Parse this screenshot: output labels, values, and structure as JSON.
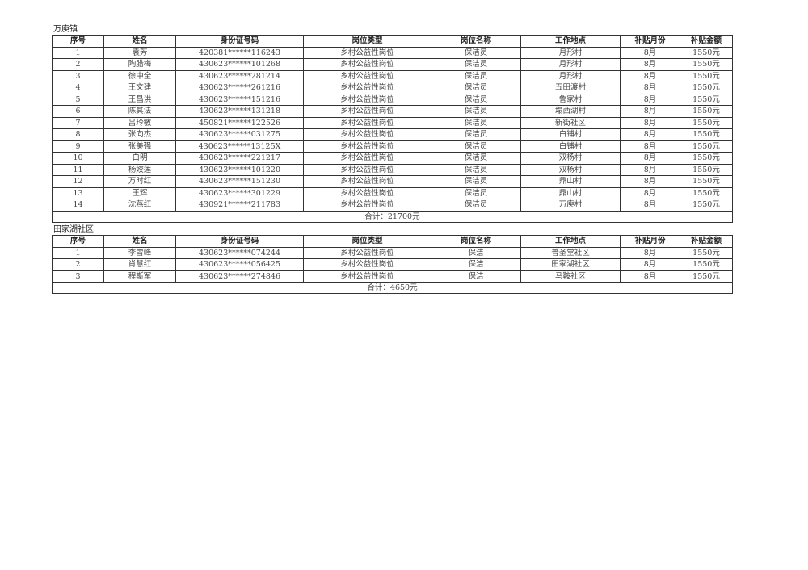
{
  "columns": [
    "序号",
    "姓名",
    "身份证号码",
    "岗位类型",
    "岗位名称",
    "工作地点",
    "补贴月份",
    "补贴金额"
  ],
  "sections": [
    {
      "title": "万庾镇",
      "rows": [
        [
          "1",
          "袁芳",
          "420381******116243",
          "乡村公益性岗位",
          "保洁员",
          "月形村",
          "8月",
          "1550元"
        ],
        [
          "2",
          "陶腊梅",
          "430623******101268",
          "乡村公益性岗位",
          "保洁员",
          "月形村",
          "8月",
          "1550元"
        ],
        [
          "3",
          "徐中全",
          "430623******281214",
          "乡村公益性岗位",
          "保洁员",
          "月形村",
          "8月",
          "1550元"
        ],
        [
          "4",
          "王文建",
          "430623******261216",
          "乡村公益性岗位",
          "保洁员",
          "五田渡村",
          "8月",
          "1550元"
        ],
        [
          "5",
          "王昌洪",
          "430623******151216",
          "乡村公益性岗位",
          "保洁员",
          "鲁家村",
          "8月",
          "1550元"
        ],
        [
          "6",
          "陈其法",
          "430623******131218",
          "乡村公益性岗位",
          "保洁员",
          "塌西湖村",
          "8月",
          "1550元"
        ],
        [
          "7",
          "吕玲敏",
          "450821******122526",
          "乡村公益性岗位",
          "保洁员",
          "新街社区",
          "8月",
          "1550元"
        ],
        [
          "8",
          "张向杰",
          "430623******031275",
          "乡村公益性岗位",
          "保洁员",
          "白铺村",
          "8月",
          "1550元"
        ],
        [
          "9",
          "张美强",
          "430623******13125X",
          "乡村公益性岗位",
          "保洁员",
          "白铺村",
          "8月",
          "1550元"
        ],
        [
          "10",
          "白明",
          "430623******221217",
          "乡村公益性岗位",
          "保洁员",
          "双杨村",
          "8月",
          "1550元"
        ],
        [
          "11",
          "杨姣莲",
          "430623******101220",
          "乡村公益性岗位",
          "保洁员",
          "双杨村",
          "8月",
          "1550元"
        ],
        [
          "12",
          "万时红",
          "430623******151230",
          "乡村公益性岗位",
          "保洁员",
          "鼎山村",
          "8月",
          "1550元"
        ],
        [
          "13",
          "王辉",
          "430623******301229",
          "乡村公益性岗位",
          "保洁员",
          "鼎山村",
          "8月",
          "1550元"
        ],
        [
          "14",
          "沈燕红",
          "430921******211783",
          "乡村公益性岗位",
          "保洁员",
          "万庾村",
          "8月",
          "1550元"
        ]
      ],
      "total": "合计：21700元"
    },
    {
      "title": "田家湖社区",
      "rows": [
        [
          "1",
          "李雪峰",
          "430623******074244",
          "乡村公益性岗位",
          "保洁",
          "普圣堂社区",
          "8月",
          "1550元"
        ],
        [
          "2",
          "肖慧红",
          "430623******056425",
          "乡村公益性岗位",
          "保洁",
          "田家湖社区",
          "8月",
          "1550元"
        ],
        [
          "3",
          "程斯军",
          "430623******274846",
          "乡村公益性岗位",
          "保洁",
          "马鞍社区",
          "8月",
          "1550元"
        ]
      ],
      "total": "合计：4650元"
    }
  ]
}
